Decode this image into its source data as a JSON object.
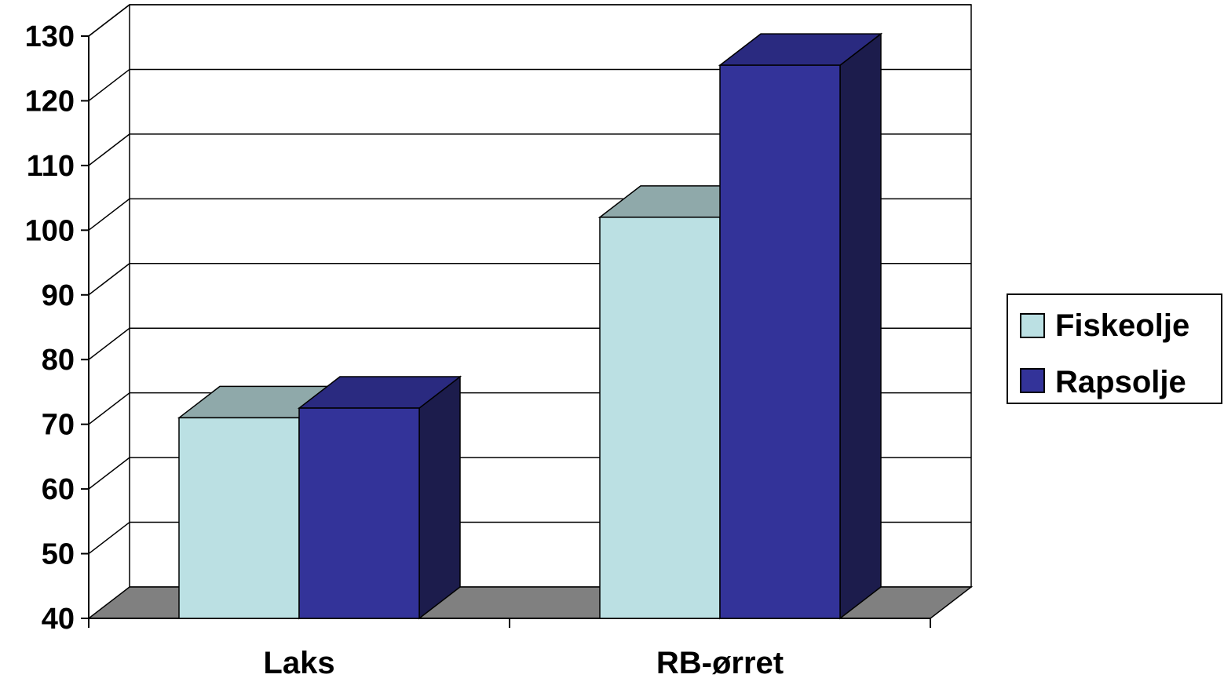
{
  "chart_data": {
    "type": "bar",
    "categories": [
      "Laks",
      "RB-ørret"
    ],
    "series": [
      {
        "name": "Fiskeolje",
        "values": [
          71,
          102
        ],
        "color": "#BBE0E3",
        "top_color": "#8FA9AA"
      },
      {
        "name": "Rapsolje",
        "values": [
          72.5,
          125.5
        ],
        "color": "#333399",
        "top_color": "#2A2A80",
        "side_color": "#1C1C4C"
      }
    ],
    "ylim": [
      40,
      130
    ],
    "yticks": [
      "40",
      "50",
      "60",
      "70",
      "80",
      "90",
      "100",
      "110",
      "120",
      "130"
    ],
    "grid": true,
    "legend": "right",
    "floor_color": "#808080",
    "title": "",
    "xlabel": "",
    "ylabel": ""
  }
}
